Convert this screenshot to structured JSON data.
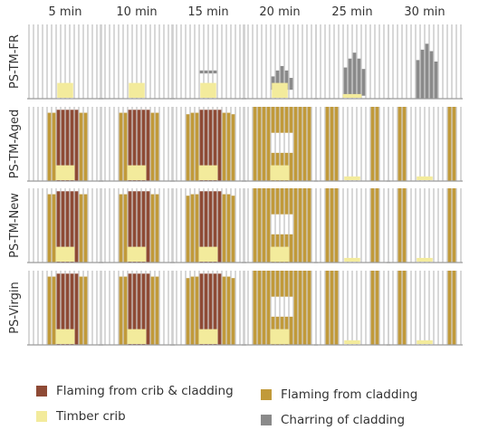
{
  "columns": [
    "5 min",
    "10 min",
    "15 min",
    "20 min",
    "25 min",
    "30 min"
  ],
  "rows": [
    "PS-TM-FR",
    "PS-TM-Aged",
    "PS-TM-New",
    "PS-Virgin"
  ],
  "colors": {
    "flaming_crib_cladding": "#8e4a35",
    "flaming_cladding": "#c19a3a",
    "charring": "#8a8a8a",
    "crib": "#f3eb9c",
    "panel_line": "#cfcfcf",
    "baseline": "#9a9a9a"
  },
  "legend": {
    "flaming_crib_cladding": "Flaming from crib & cladding",
    "flaming_cladding": "Flaming from cladding",
    "crib": "Timber crib",
    "charring": "Charring of cladding"
  }
}
